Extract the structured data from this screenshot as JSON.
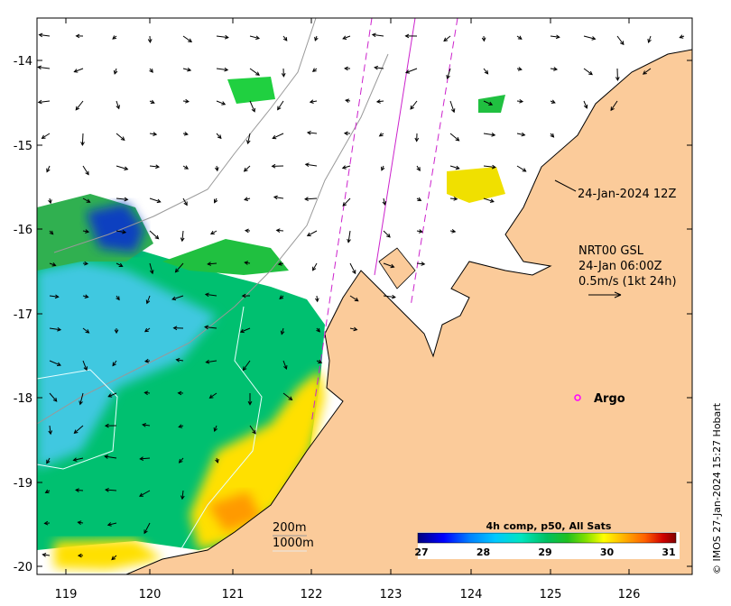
{
  "map": {
    "lon_ticks": [
      "119",
      "120",
      "121",
      "122",
      "123",
      "124",
      "125",
      "126"
    ],
    "lat_ticks": [
      "-14",
      "-15",
      "-16",
      "-17",
      "-18",
      "-19",
      "-20"
    ],
    "lon_range": [
      118.7,
      126.7
    ],
    "lat_range": [
      -20.1,
      -13.5
    ]
  },
  "annotations": {
    "swath_time": "24-Jan-2024 12Z",
    "current_source": "NRT00 GSL",
    "current_time": "24-Jan 06:00Z",
    "current_scale": "0.5m/s (1kt 24h)",
    "argo_label": "Argo",
    "contour_200": "200m",
    "contour_1000": "1000m"
  },
  "colorbar": {
    "title": "4h comp, p50, All Sats",
    "ticks": [
      "27",
      "28",
      "29",
      "30",
      "31"
    ],
    "range": [
      27,
      31
    ],
    "colors": [
      "#00007f",
      "#0000ff",
      "#0080ff",
      "#00c8ff",
      "#00e5c0",
      "#00c060",
      "#20c020",
      "#80e000",
      "#ffff00",
      "#ffb000",
      "#ff6000",
      "#d00000",
      "#800000"
    ]
  },
  "credit": "© IMOS 27-Jan-2024 15:27 Hobart",
  "colors": {
    "land": "#fbcb9a",
    "argo_marker": "#ff00ff",
    "swath": "#cc22cc"
  }
}
